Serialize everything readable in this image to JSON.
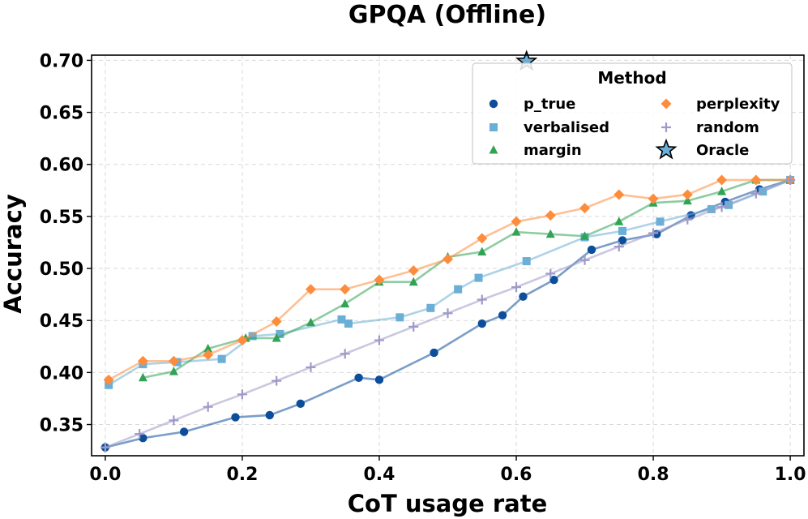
{
  "chart_data": {
    "type": "line",
    "title": "GPQA (Offline)",
    "xlabel": "CoT usage rate",
    "ylabel": "Accuracy",
    "xlim": [
      -0.02,
      1.02
    ],
    "ylim": [
      0.32,
      0.705
    ],
    "xticks": [
      "0.0",
      "0.2",
      "0.4",
      "0.6",
      "0.8",
      "1.0"
    ],
    "xtick_values": [
      0,
      0.2,
      0.4,
      0.6,
      0.8,
      1.0
    ],
    "yticks": [
      "0.35",
      "0.40",
      "0.45",
      "0.50",
      "0.55",
      "0.60",
      "0.65",
      "0.70"
    ],
    "ytick_values": [
      0.35,
      0.4,
      0.45,
      0.5,
      0.55,
      0.6,
      0.65,
      0.7
    ],
    "grid": true,
    "legend": {
      "title": "Method",
      "placement": "top-right",
      "columns": 2
    },
    "series": [
      {
        "name": "p_true",
        "color": "#0d4e9b",
        "marker": "circle",
        "x": [
          0.0,
          0.055,
          0.115,
          0.19,
          0.24,
          0.285,
          0.37,
          0.4,
          0.48,
          0.55,
          0.58,
          0.61,
          0.655,
          0.71,
          0.755,
          0.805,
          0.855,
          0.905,
          0.955,
          1.0
        ],
        "y": [
          0.328,
          0.337,
          0.343,
          0.357,
          0.359,
          0.37,
          0.395,
          0.393,
          0.419,
          0.447,
          0.455,
          0.473,
          0.489,
          0.518,
          0.527,
          0.533,
          0.551,
          0.564,
          0.576,
          0.585
        ]
      },
      {
        "name": "verbalised",
        "color": "#6baed6",
        "marker": "square",
        "x": [
          0.005,
          0.055,
          0.105,
          0.17,
          0.215,
          0.255,
          0.345,
          0.355,
          0.43,
          0.475,
          0.515,
          0.545,
          0.615,
          0.7,
          0.755,
          0.81,
          0.885,
          0.91,
          0.96,
          1.0
        ],
        "y": [
          0.388,
          0.408,
          0.41,
          0.413,
          0.435,
          0.437,
          0.451,
          0.447,
          0.453,
          0.462,
          0.48,
          0.491,
          0.507,
          0.53,
          0.536,
          0.545,
          0.557,
          0.561,
          0.574,
          0.585
        ]
      },
      {
        "name": "margin",
        "color": "#31a354",
        "marker": "triangle",
        "x": [
          0.055,
          0.1,
          0.15,
          0.205,
          0.25,
          0.3,
          0.35,
          0.4,
          0.45,
          0.5,
          0.55,
          0.6,
          0.65,
          0.7,
          0.75,
          0.8,
          0.85,
          0.9,
          0.95,
          1.0
        ],
        "y": [
          0.395,
          0.401,
          0.423,
          0.433,
          0.433,
          0.448,
          0.466,
          0.487,
          0.487,
          0.511,
          0.516,
          0.535,
          0.533,
          0.531,
          0.545,
          0.563,
          0.565,
          0.574,
          0.585,
          0.585
        ]
      },
      {
        "name": "perplexity",
        "color": "#fd8d3c",
        "marker": "diamond",
        "x": [
          0.005,
          0.055,
          0.1,
          0.15,
          0.2,
          0.25,
          0.3,
          0.35,
          0.4,
          0.45,
          0.5,
          0.55,
          0.6,
          0.65,
          0.7,
          0.75,
          0.8,
          0.85,
          0.9,
          0.95,
          1.0
        ],
        "y": [
          0.393,
          0.411,
          0.411,
          0.417,
          0.431,
          0.449,
          0.48,
          0.48,
          0.489,
          0.498,
          0.509,
          0.529,
          0.545,
          0.551,
          0.558,
          0.571,
          0.567,
          0.571,
          0.585,
          0.585,
          0.585
        ]
      },
      {
        "name": "random",
        "color": "#9e9ac8",
        "marker": "plus",
        "x": [
          0.0,
          0.05,
          0.1,
          0.15,
          0.2,
          0.25,
          0.3,
          0.35,
          0.4,
          0.45,
          0.5,
          0.55,
          0.6,
          0.65,
          0.7,
          0.75,
          0.8,
          0.85,
          0.9,
          0.95,
          1.0
        ],
        "y": [
          0.328,
          0.341,
          0.354,
          0.367,
          0.379,
          0.392,
          0.405,
          0.418,
          0.431,
          0.444,
          0.457,
          0.47,
          0.482,
          0.495,
          0.508,
          0.521,
          0.534,
          0.547,
          0.559,
          0.572,
          0.585
        ]
      },
      {
        "name": "Oracle",
        "color": "#6baed6",
        "marker": "star",
        "x": [
          0.615
        ],
        "y": [
          0.699
        ]
      }
    ]
  }
}
